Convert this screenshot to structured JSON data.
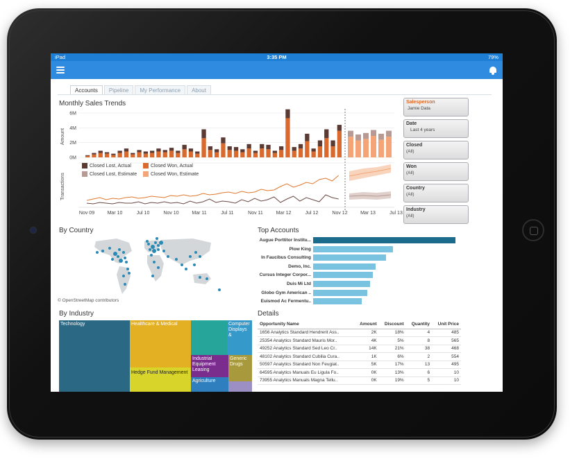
{
  "statusbar": {
    "left": "iPad",
    "time": "3:35 PM",
    "right": "79%"
  },
  "tabs": [
    "Accounts",
    "Pipeline",
    "My Performance",
    "About"
  ],
  "monthly_trends": {
    "title": "Monthly Sales Trends",
    "amount_label": "Amount",
    "transactions_label": "Transactions",
    "y_ticks": [
      "6M",
      "4M",
      "2M",
      "0M"
    ],
    "x_ticks": [
      "Nov 09",
      "Mar 10",
      "Jul 10",
      "Nov 10",
      "Mar 11",
      "Jul 11",
      "Nov 11",
      "Mar 12",
      "Jul 12",
      "Nov 12",
      "Mar 13",
      "Jul 13"
    ],
    "legend": [
      "Closed Lost, Actual",
      "Closed Won, Actual",
      "Closed Lost, Estimate",
      "Closed Won, Estimate"
    ],
    "colors": {
      "lost_actual": "#5b3a33",
      "won_actual": "#d9692c",
      "lost_est": "#b79a94",
      "won_est": "#f4a476",
      "line_won": "#e0782e",
      "line_lost": "#6b4a45"
    }
  },
  "chart_data": {
    "type": "bar",
    "title": "Monthly Sales Trends",
    "ylabel": "Amount",
    "ylim": [
      0,
      6
    ],
    "unit": "M",
    "series": [
      {
        "name": "Closed Won, Actual",
        "values": [
          0.2,
          0.4,
          0.6,
          0.5,
          0.3,
          0.6,
          0.8,
          0.4,
          0.7,
          0.5,
          0.6,
          0.8,
          0.7,
          0.9,
          0.6,
          1.1,
          0.8,
          0.5,
          2.6,
          1.0,
          0.7,
          1.9,
          1.0,
          0.9,
          0.7,
          1.2,
          0.6,
          1.2,
          1.1,
          0.6,
          1.0,
          5.3,
          0.9,
          1.2,
          2.2,
          0.8,
          1.5,
          2.6,
          1.5,
          3.6
        ]
      },
      {
        "name": "Closed Lost, Actual",
        "values": [
          0.1,
          0.2,
          0.3,
          0.2,
          0.2,
          0.3,
          0.4,
          0.2,
          0.3,
          0.3,
          0.3,
          0.4,
          0.3,
          0.4,
          0.3,
          0.6,
          0.4,
          0.3,
          1.2,
          0.5,
          0.4,
          0.8,
          0.5,
          0.5,
          0.4,
          0.6,
          0.3,
          0.6,
          0.6,
          0.3,
          0.5,
          1.2,
          0.5,
          0.6,
          1.0,
          0.4,
          0.8,
          1.2,
          0.8,
          0.8
        ]
      },
      {
        "name": "Closed Won, Estimate",
        "values": [
          2.8,
          2.3,
          2.5,
          2.9,
          2.4,
          2.8
        ]
      },
      {
        "name": "Closed Lost, Estimate",
        "values": [
          0.8,
          0.8,
          0.8,
          0.8,
          0.8,
          0.8
        ]
      }
    ]
  },
  "filters": [
    {
      "label": "Salesperson",
      "value": "Jamie Data"
    },
    {
      "label": "Date",
      "value": "Last 4 years"
    },
    {
      "label": "Closed",
      "value": "(All)"
    },
    {
      "label": "Won",
      "value": "(All)"
    },
    {
      "label": "Country",
      "value": "(All)"
    },
    {
      "label": "Industry",
      "value": "(All)"
    }
  ],
  "by_country": {
    "title": "By Country",
    "credit": "© OpenStreetMap contributors"
  },
  "top_accounts": {
    "title": "Top Accounts",
    "items": [
      {
        "name": "Augue Porttitor Institu...",
        "value": 100
      },
      {
        "name": "Plow King",
        "value": 56
      },
      {
        "name": "In Faucibus Consulting",
        "value": 51
      },
      {
        "name": "Demo, Inc.",
        "value": 44
      },
      {
        "name": "Cursus Integer Corpor...",
        "value": 42
      },
      {
        "name": "Duis Mi Ltd",
        "value": 40
      },
      {
        "name": "Globo Gym American ..",
        "value": 38
      },
      {
        "name": "Euismod Ac Fermentu..",
        "value": 34
      }
    ]
  },
  "by_industry": {
    "title": "By Industry",
    "cells": [
      "Technology",
      "Healthcare & Medical",
      "Hedge Fund Management",
      "Computer Displays &",
      "Industrial Equipment Leasing",
      "Generic Drugs",
      "Agriculture"
    ]
  },
  "details": {
    "title": "Details",
    "columns": [
      "Opportunity Name",
      "Amount",
      "Discount",
      "Quantity",
      "Unit Price"
    ],
    "rows": [
      [
        "1656 Analytics Standard Hendrerit Ass..",
        "2K",
        "18%",
        "4",
        "485"
      ],
      [
        "25354 Analytics Standard Mauris Mor..",
        "4K",
        "5%",
        "8",
        "565"
      ],
      [
        "49252 Analytics Standard Sed Leo Cr..",
        "14K",
        "21%",
        "38",
        "468"
      ],
      [
        "48102 Analytics Standard Cubilia Cura..",
        "1K",
        "6%",
        "2",
        "554"
      ],
      [
        "50597 Analytics Standard Non Feugiat..",
        "5K",
        "17%",
        "13",
        "495"
      ],
      [
        "64595 Analytics Manuals Eu Ligula Fo..",
        "0K",
        "13%",
        "6",
        "10"
      ],
      [
        "73955 Analytics Manuals Magna Tellu..",
        "0K",
        "19%",
        "5",
        "10"
      ]
    ]
  }
}
